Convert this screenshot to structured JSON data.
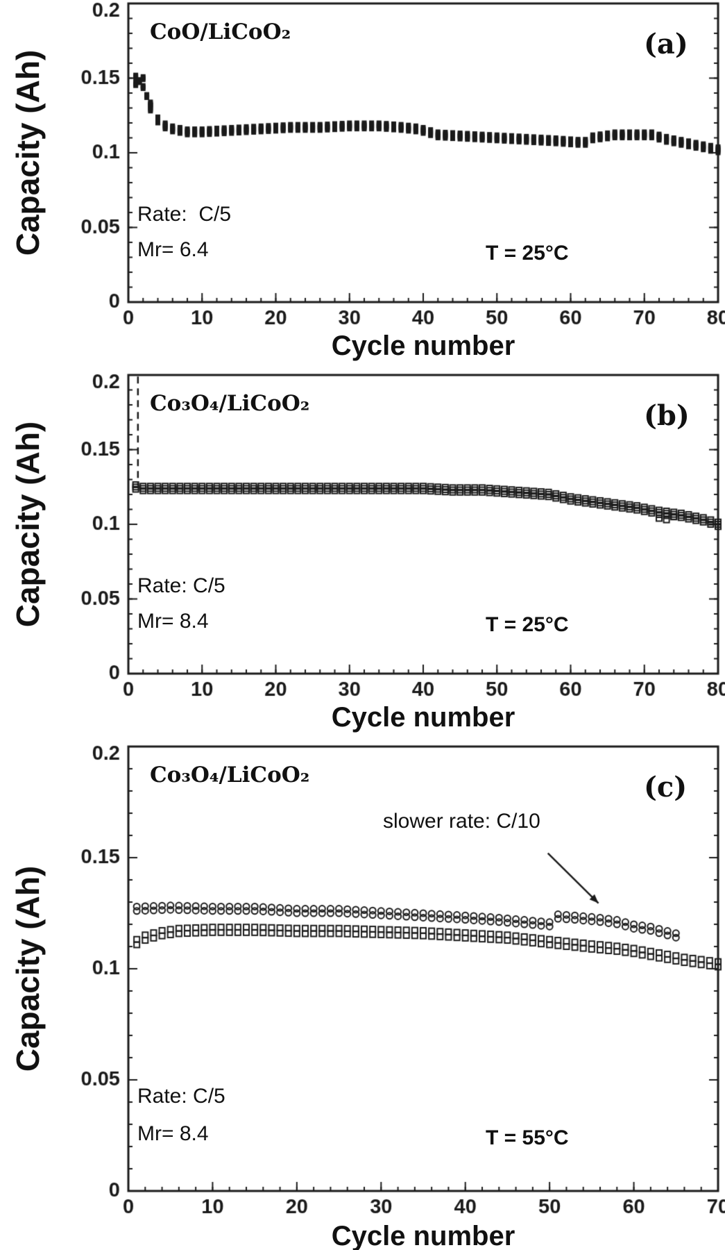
{
  "figure": {
    "ink": "#1a1a1a",
    "background": "#ffffff"
  },
  "chart_data": [
    {
      "id": "a",
      "type": "scatter",
      "panel_label": "(a)",
      "title": "CoO/LiCoO₂",
      "xlabel": "Cycle number",
      "ylabel": "Capacity (Ah)",
      "xlim": [
        0,
        80
      ],
      "ylim": [
        0,
        0.2
      ],
      "xticks": [
        0,
        10,
        20,
        30,
        40,
        50,
        60,
        70,
        80
      ],
      "xtick_labels": [
        "0",
        "10",
        "20",
        "30",
        "40",
        "50",
        "60",
        "70",
        "80"
      ],
      "yticks": [
        0,
        0.05,
        0.1,
        0.15,
        0.2
      ],
      "ytick_labels": [
        "0",
        "0.05",
        "0.1",
        "0.15",
        "0.2"
      ],
      "x_minor_step": 2,
      "y_minor_step": 0.01,
      "grid": false,
      "legend": "none",
      "annotations": {
        "rate": "Rate:  C/5",
        "mr": "Mr= 6.4",
        "temp": "T = 25°C"
      },
      "series": [
        {
          "name": "capacity vs cycle (C/5, 25C)",
          "marker": "square-filled",
          "size": 7,
          "row_offsets": [
            -0.002,
            -0.001,
            0,
            0.001,
            0.002
          ],
          "x": [
            3,
            4,
            5,
            6,
            8,
            10,
            14,
            18,
            22,
            26,
            30,
            34,
            37,
            39,
            40,
            42,
            46,
            50,
            54,
            58,
            61,
            62,
            63,
            66,
            70,
            71,
            73,
            75,
            78,
            80
          ],
          "y": [
            0.13,
            0.122,
            0.118,
            0.116,
            0.114,
            0.114,
            0.115,
            0.116,
            0.117,
            0.117,
            0.118,
            0.118,
            0.117,
            0.116,
            0.115,
            0.112,
            0.111,
            0.11,
            0.109,
            0.108,
            0.107,
            0.107,
            0.11,
            0.112,
            0.112,
            0.112,
            0.109,
            0.107,
            0.104,
            0.102
          ]
        },
        {
          "name": "initial cycles scatter",
          "marker": "square-filled",
          "size": 7,
          "row_offsets": [
            -0.001,
            0,
            0.001
          ],
          "points": [
            [
              1,
              0.146
            ],
            [
              1,
              0.151
            ],
            [
              1.5,
              0.148
            ],
            [
              2,
              0.144
            ],
            [
              2,
              0.15
            ],
            [
              2.5,
              0.138
            ],
            [
              3,
              0.133
            ]
          ]
        }
      ]
    },
    {
      "id": "b",
      "type": "scatter",
      "panel_label": "(b)",
      "title": "Co₃O₄/LiCoO₂",
      "xlabel": "Cycle number",
      "ylabel": "Capacity (Ah)",
      "xlim": [
        0,
        80
      ],
      "ylim": [
        0,
        0.2
      ],
      "xticks": [
        0,
        10,
        20,
        30,
        40,
        50,
        60,
        70,
        80
      ],
      "xtick_labels": [
        "0",
        "10",
        "20",
        "30",
        "40",
        "50",
        "60",
        "70",
        "80"
      ],
      "yticks": [
        0,
        0.05,
        0.1,
        0.15,
        0.2
      ],
      "ytick_labels": [
        "0",
        "0.05",
        "0.1",
        "0.15",
        "0.2"
      ],
      "x_minor_step": 2,
      "y_minor_step": 0.01,
      "grid": false,
      "legend": "none",
      "spike": {
        "x": 1.3,
        "y_top": 0.199,
        "y_bottom": 0.126,
        "style": "dashed"
      },
      "annotations": {
        "rate": "Rate: C/5",
        "mr": "Mr= 8.4",
        "temp": "T = 25°C"
      },
      "series": [
        {
          "name": "capacity vs cycle (C/5, 25C)",
          "marker": "square-open",
          "size": 8,
          "row_offsets": [
            -0.0015,
            0,
            0.0015
          ],
          "x": [
            1,
            2,
            6,
            10,
            15,
            20,
            25,
            30,
            35,
            40,
            44,
            48,
            51,
            54,
            57,
            60,
            63,
            66,
            69,
            72,
            75,
            78,
            80
          ],
          "y": [
            0.125,
            0.124,
            0.124,
            0.124,
            0.124,
            0.124,
            0.124,
            0.124,
            0.124,
            0.124,
            0.123,
            0.123,
            0.122,
            0.121,
            0.12,
            0.117,
            0.115,
            0.113,
            0.111,
            0.108,
            0.106,
            0.103,
            0.1
          ]
        },
        {
          "name": "late-cycle scatter",
          "marker": "square-open",
          "size": 8,
          "row_offsets": [
            0
          ],
          "points": [
            [
              72,
              0.104
            ],
            [
              73,
              0.103
            ],
            [
              74,
              0.105
            ]
          ]
        }
      ]
    },
    {
      "id": "c",
      "type": "scatter",
      "panel_label": "(c)",
      "title": "Co₃O₄/LiCoO₂",
      "xlabel": "Cycle number",
      "ylabel": "Capacity (Ah)",
      "xlim": [
        0,
        70
      ],
      "ylim": [
        0,
        0.2
      ],
      "xticks": [
        0,
        10,
        20,
        30,
        40,
        50,
        60,
        70
      ],
      "xtick_labels": [
        "0",
        "10",
        "20",
        "30",
        "40",
        "50",
        "60",
        "70"
      ],
      "yticks": [
        0,
        0.05,
        0.1,
        0.15,
        0.2
      ],
      "ytick_labels": [
        "0",
        "0.05",
        "0.1",
        "0.15",
        "0.2"
      ],
      "x_minor_step": 2,
      "y_minor_step": 0.01,
      "grid": false,
      "legend": "none",
      "arrow": {
        "from": [
          49.8,
          0.152
        ],
        "to": [
          55.8,
          0.1295
        ]
      },
      "annotations": {
        "rate": "Rate: C/5",
        "mr": "Mr= 8.4",
        "temp": "T = 55°C",
        "slower_note": "slower rate: C/10"
      },
      "series": [
        {
          "name": "slower rate C/10 (open circles)",
          "marker": "circle-open",
          "size": 9,
          "row_offsets": [
            -0.001,
            0.001
          ],
          "x": [
            1,
            5,
            10,
            15,
            20,
            25,
            30,
            35,
            40,
            44,
            47,
            50,
            51,
            53,
            56,
            58,
            60,
            62,
            64,
            65
          ],
          "y": [
            0.127,
            0.1275,
            0.127,
            0.127,
            0.126,
            0.126,
            0.125,
            0.124,
            0.123,
            0.122,
            0.121,
            0.12,
            0.1235,
            0.123,
            0.122,
            0.121,
            0.119,
            0.118,
            0.116,
            0.115
          ]
        },
        {
          "name": "rate C/5 (open squares)",
          "marker": "square-open",
          "size": 8,
          "row_offsets": [
            -0.0012,
            0.0012
          ],
          "x": [
            1,
            2,
            4,
            6,
            10,
            15,
            20,
            25,
            30,
            35,
            40,
            45,
            50,
            55,
            58,
            60,
            63,
            66,
            68,
            70
          ],
          "y": [
            0.112,
            0.114,
            0.116,
            0.117,
            0.1175,
            0.1175,
            0.117,
            0.117,
            0.1165,
            0.116,
            0.115,
            0.114,
            0.112,
            0.11,
            0.109,
            0.108,
            0.106,
            0.104,
            0.103,
            0.102
          ]
        }
      ]
    }
  ]
}
